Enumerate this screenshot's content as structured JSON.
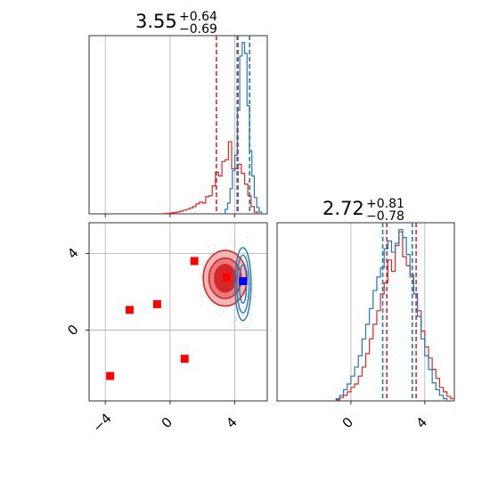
{
  "chart_data": [
    {
      "type": "histogram",
      "panel": "top-left marginal",
      "title_main": "3.55",
      "title_sup": "+0.64",
      "title_sub": "−0.69",
      "xlim": [
        -5.0,
        6.0
      ],
      "xticks": [
        -4,
        0,
        4
      ],
      "series": [
        {
          "color": "#d62728",
          "bin_edges": [
            -0.4,
            -0.2,
            0.0,
            0.2,
            0.4,
            0.6,
            0.8,
            1.0,
            1.2,
            1.4,
            1.6,
            1.8,
            2.0,
            2.2,
            2.4,
            2.6,
            2.8,
            3.0,
            3.2,
            3.4,
            3.6,
            3.8,
            4.0,
            4.2,
            4.4,
            4.6,
            4.8,
            5.0,
            5.2,
            5.4
          ],
          "counts": [
            0.3,
            0.5,
            1,
            1.5,
            2,
            3,
            4,
            5,
            6.5,
            8,
            11,
            13,
            12,
            19,
            20,
            31,
            46,
            42,
            58,
            60,
            80,
            50,
            50,
            55,
            45,
            33,
            20,
            8,
            2
          ],
          "quantiles": [
            2.86,
            4.19
          ]
        },
        {
          "color": "#1f77b4",
          "bin_edges": [
            3.4,
            3.55,
            3.7,
            3.85,
            4.0,
            4.15,
            4.3,
            4.45,
            4.6,
            4.75,
            4.9,
            5.05,
            5.2,
            5.35,
            5.5,
            5.65
          ],
          "counts": [
            5,
            12,
            28,
            48,
            65,
            115,
            175,
            190,
            178,
            120,
            70,
            42,
            18,
            7,
            2
          ],
          "quantiles": [
            4.14,
            4.91
          ]
        }
      ]
    },
    {
      "type": "histogram",
      "panel": "bottom-right marginal",
      "title_main": "2.72",
      "title_sup": "+0.81",
      "title_sub": "−0.78",
      "xlim": [
        -4.0,
        5.6
      ],
      "xticks": [
        0,
        4
      ],
      "series": [
        {
          "color": "#d62728",
          "bin_edges": [
            -0.8,
            -0.6,
            -0.4,
            -0.2,
            0.0,
            0.2,
            0.4,
            0.6,
            0.8,
            1.0,
            1.2,
            1.4,
            1.6,
            1.8,
            2.0,
            2.2,
            2.4,
            2.6,
            2.8,
            3.0,
            3.2,
            3.4,
            3.6,
            3.8,
            4.0,
            4.2,
            4.4,
            4.6,
            4.8,
            5.0,
            5.2,
            5.4,
            5.6
          ],
          "counts": [
            1,
            3,
            5,
            8,
            12,
            15,
            22,
            30,
            42,
            55,
            68,
            80,
            95,
            105,
            125,
            115,
            138,
            150,
            128,
            120,
            110,
            95,
            80,
            62,
            48,
            38,
            28,
            20,
            12,
            8,
            4,
            2
          ],
          "quantiles": [
            1.94,
            3.53
          ]
        },
        {
          "color": "#1f77b4",
          "bin_edges": [
            -0.8,
            -0.6,
            -0.4,
            -0.2,
            0.0,
            0.2,
            0.4,
            0.6,
            0.8,
            1.0,
            1.2,
            1.4,
            1.6,
            1.8,
            2.0,
            2.2,
            2.4,
            2.6,
            2.8,
            3.0,
            3.2,
            3.4,
            3.6,
            3.8,
            4.0,
            4.2,
            4.4,
            4.6,
            4.8,
            5.0,
            5.2
          ],
          "counts": [
            2,
            5,
            10,
            15,
            22,
            30,
            40,
            55,
            68,
            82,
            98,
            110,
            118,
            135,
            142,
            132,
            140,
            152,
            145,
            130,
            112,
            95,
            75,
            55,
            40,
            28,
            16,
            10,
            5,
            2
          ],
          "quantiles": [
            1.72,
            3.32
          ]
        }
      ]
    },
    {
      "type": "scatter",
      "panel": "bottom-left joint",
      "xlim": [
        -5.0,
        6.0
      ],
      "ylim": [
        -3.7,
        5.6
      ],
      "xticks": [
        -4,
        0,
        4
      ],
      "yticks": [
        0,
        4
      ],
      "points": [
        {
          "x": 1.5,
          "y": 3.6,
          "color": "#ff0000"
        },
        {
          "x": 3.5,
          "y": 2.75,
          "color": "#ff0000"
        },
        {
          "x": -2.5,
          "y": 1.05,
          "color": "#ff0000"
        },
        {
          "x": -0.8,
          "y": 1.35,
          "color": "#ff0000"
        },
        {
          "x": 0.9,
          "y": -1.5,
          "color": "#ff0000"
        },
        {
          "x": -3.7,
          "y": -2.4,
          "color": "#ff0000"
        },
        {
          "x": 4.5,
          "y": 2.55,
          "color": "#0000ff"
        }
      ],
      "contours": [
        {
          "color": "#d62728",
          "center": [
            3.4,
            2.7
          ],
          "levels": [
            {
              "rx": 1.35,
              "ry": 1.45,
              "fill": "#f4b7b7"
            },
            {
              "rx": 1.0,
              "ry": 1.05,
              "fill": "#ea7c7c"
            },
            {
              "rx": 0.65,
              "ry": 0.72,
              "fill": "#d62728"
            }
          ]
        },
        {
          "color": "#1f77b4",
          "center": [
            4.5,
            2.4
          ],
          "levels": [
            {
              "rx": 0.5,
              "ry": 1.9
            },
            {
              "rx": 0.38,
              "ry": 1.5
            },
            {
              "rx": 0.22,
              "ry": 1.0
            }
          ]
        }
      ]
    }
  ]
}
